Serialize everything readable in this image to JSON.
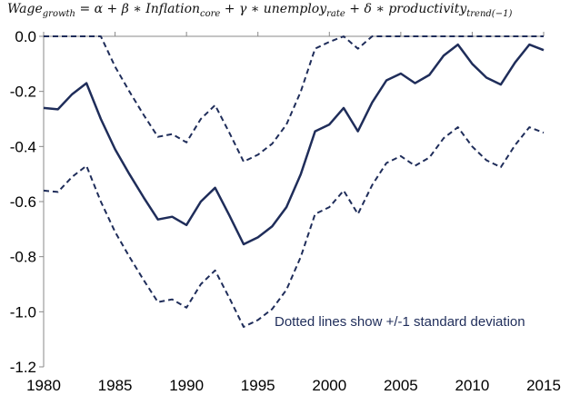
{
  "formula": {
    "p1": "Wage",
    "s1": "growth",
    "p2": " = α +  β ∗ Inflation",
    "s2": "core",
    "p3": " + γ ∗ unemploy",
    "s3": "rate",
    "p4": "  + δ ∗ productivity",
    "s4": "trend(−1)"
  },
  "chart_data": {
    "type": "line",
    "title": "",
    "xlabel": "",
    "ylabel": "",
    "xlim": [
      1980,
      2015
    ],
    "ylim": [
      -1.2,
      0.0
    ],
    "xticks": [
      1980,
      1985,
      1990,
      1995,
      2000,
      2005,
      2010,
      2015
    ],
    "yticks": [
      0.0,
      -0.2,
      -0.4,
      -0.6,
      -0.8,
      -1.0,
      -1.2
    ],
    "ytick_labels": [
      "0.0",
      "-0.2",
      "-0.4",
      "-0.6",
      "-0.8",
      "-1.0",
      "-1.2"
    ],
    "grid": false,
    "x": [
      1980,
      1981,
      1982,
      1983,
      1984,
      1985,
      1986,
      1987,
      1988,
      1989,
      1990,
      1991,
      1992,
      1993,
      1994,
      1995,
      1996,
      1997,
      1998,
      1999,
      2000,
      2001,
      2002,
      2003,
      2004,
      2005,
      2006,
      2007,
      2008,
      2009,
      2010,
      2011,
      2012,
      2013,
      2014,
      2015
    ],
    "series": [
      {
        "style": "solid",
        "values": [
          -0.26,
          -0.265,
          -0.21,
          -0.17,
          -0.3,
          -0.41,
          -0.5,
          -0.585,
          -0.665,
          -0.655,
          -0.685,
          -0.6,
          -0.55,
          -0.65,
          -0.755,
          -0.73,
          -0.69,
          -0.62,
          -0.5,
          -0.345,
          -0.32,
          -0.26,
          -0.345,
          -0.24,
          -0.16,
          -0.135,
          -0.17,
          -0.14,
          -0.07,
          -0.03,
          -0.1,
          -0.15,
          -0.175,
          -0.095,
          -0.03,
          -0.05
        ]
      },
      {
        "style": "dashed",
        "values": [
          0,
          0,
          0,
          0,
          0,
          -0.11,
          -0.2,
          -0.285,
          -0.365,
          -0.355,
          -0.385,
          -0.3,
          -0.25,
          -0.35,
          -0.455,
          -0.43,
          -0.39,
          -0.32,
          -0.2,
          -0.045,
          -0.02,
          0,
          -0.045,
          0,
          0,
          0,
          0,
          0,
          0,
          0,
          0,
          0,
          0,
          0,
          0,
          0
        ]
      },
      {
        "style": "dashed",
        "values": [
          -0.56,
          -0.565,
          -0.51,
          -0.47,
          -0.6,
          -0.71,
          -0.8,
          -0.885,
          -0.965,
          -0.955,
          -0.985,
          -0.9,
          -0.85,
          -0.95,
          -1.055,
          -1.03,
          -0.99,
          -0.92,
          -0.8,
          -0.645,
          -0.62,
          -0.56,
          -0.645,
          -0.54,
          -0.46,
          -0.435,
          -0.47,
          -0.44,
          -0.37,
          -0.33,
          -0.4,
          -0.45,
          -0.475,
          -0.395,
          -0.33,
          -0.35
        ]
      }
    ],
    "line_color": "#1f2d5a",
    "annotation": "Dotted lines show +/-1 standard deviation"
  }
}
